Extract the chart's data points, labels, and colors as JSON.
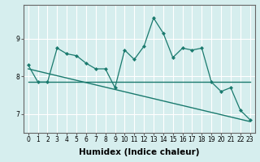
{
  "title": "",
  "xlabel": "Humidex (Indice chaleur)",
  "ylabel": "",
  "background_color": "#d6eeee",
  "grid_color": "#ffffff",
  "line_color": "#1a7a6e",
  "x_values": [
    0,
    1,
    2,
    3,
    4,
    5,
    6,
    7,
    8,
    9,
    10,
    11,
    12,
    13,
    14,
    15,
    16,
    17,
    18,
    19,
    20,
    21,
    22,
    23
  ],
  "series1": [
    8.3,
    7.85,
    7.85,
    8.75,
    8.6,
    8.55,
    8.35,
    8.2,
    8.2,
    7.7,
    8.7,
    8.45,
    8.8,
    9.55,
    9.15,
    8.5,
    8.75,
    8.7,
    8.75,
    7.85,
    7.6,
    7.7,
    7.1,
    6.85
  ],
  "series2_x": [
    0,
    23
  ],
  "series2_y": [
    7.85,
    7.85
  ],
  "series3_x": [
    0,
    23
  ],
  "series3_y": [
    8.2,
    6.8
  ],
  "ylim": [
    6.5,
    9.9
  ],
  "yticks": [
    7,
    8,
    9
  ],
  "xticks": [
    0,
    1,
    2,
    3,
    4,
    5,
    6,
    7,
    8,
    9,
    10,
    11,
    12,
    13,
    14,
    15,
    16,
    17,
    18,
    19,
    20,
    21,
    22,
    23
  ],
  "tick_fontsize": 5.5,
  "xlabel_fontsize": 7.5
}
